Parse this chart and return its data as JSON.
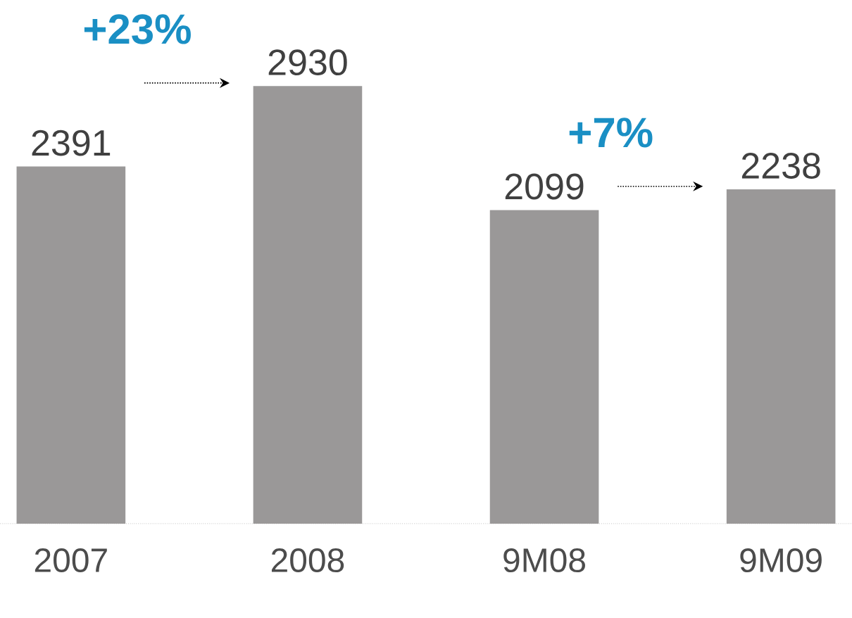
{
  "chart_data": {
    "type": "bar",
    "categories": [
      "2007",
      "2008",
      "9M08",
      "9M09"
    ],
    "values": [
      2391,
      2930,
      2099,
      2238
    ],
    "color": "#9a9898",
    "data_labels": true,
    "annotations": [
      "+23%",
      "+7%"
    ]
  }
}
